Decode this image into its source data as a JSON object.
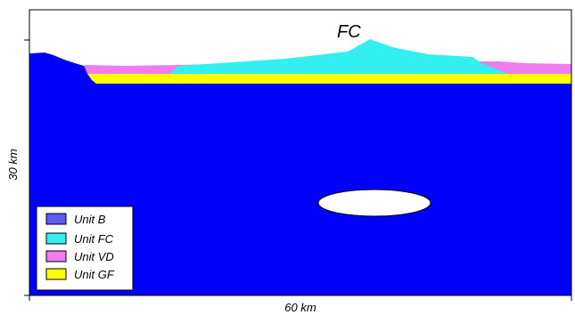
{
  "title": "FC",
  "axes": {
    "x_label": "60 km",
    "y_label": "30 km"
  },
  "legend": {
    "placement": "bottom-left",
    "items": [
      {
        "label": "Unit B",
        "color": "#5a5ef0"
      },
      {
        "label": "Unit FC",
        "color": "#33f0f0"
      },
      {
        "label": "Unit VD",
        "color": "#f07cf0"
      },
      {
        "label": "Unit GF",
        "color": "#ffff00"
      }
    ]
  },
  "colors": {
    "background_fill": "#0000ff",
    "body_outline": "#000000",
    "ellipse_fill": "#ffffff"
  }
}
